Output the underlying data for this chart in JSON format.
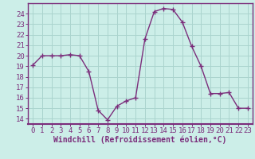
{
  "hours": [
    0,
    1,
    2,
    3,
    4,
    5,
    6,
    7,
    8,
    9,
    10,
    11,
    12,
    13,
    14,
    15,
    16,
    17,
    18,
    19,
    20,
    21,
    22,
    23
  ],
  "values": [
    19.1,
    20.0,
    20.0,
    20.0,
    20.1,
    20.0,
    18.5,
    14.8,
    13.9,
    15.2,
    15.7,
    16.0,
    21.6,
    24.2,
    24.5,
    24.4,
    23.2,
    20.9,
    19.0,
    16.4,
    16.4,
    16.5,
    15.0,
    15.0
  ],
  "line_color": "#7b2d7b",
  "marker": "+",
  "marker_size": 4,
  "marker_linewidth": 1.0,
  "bg_color": "#cceee8",
  "grid_color": "#aad4ce",
  "xlabel": "Windchill (Refroidissement éolien,°C)",
  "xlim": [
    -0.5,
    23.5
  ],
  "ylim": [
    13.5,
    25.0
  ],
  "yticks": [
    14,
    15,
    16,
    17,
    18,
    19,
    20,
    21,
    22,
    23,
    24
  ],
  "xticks": [
    0,
    1,
    2,
    3,
    4,
    5,
    6,
    7,
    8,
    9,
    10,
    11,
    12,
    13,
    14,
    15,
    16,
    17,
    18,
    19,
    20,
    21,
    22,
    23
  ],
  "tick_fontsize": 6.5,
  "xlabel_fontsize": 7.0,
  "label_color": "#7b2d7b",
  "spine_color": "#7b2d7b",
  "line_width": 1.0
}
